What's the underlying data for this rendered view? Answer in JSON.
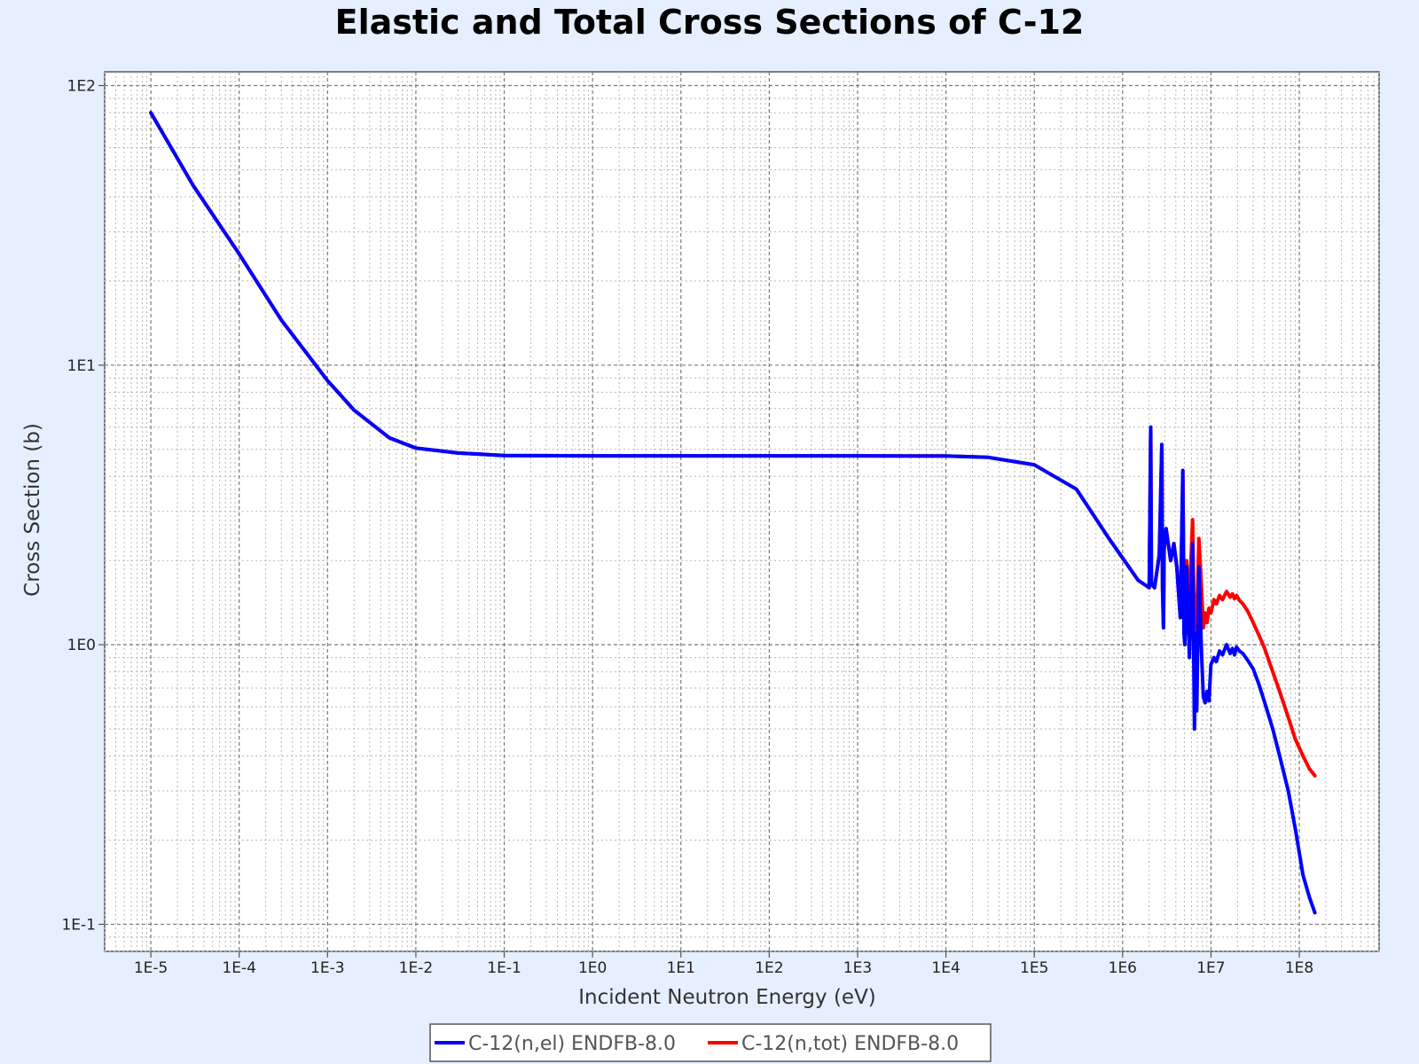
{
  "chart_data": {
    "type": "line",
    "title": "Elastic and Total Cross Sections of C-12",
    "xlabel": "Incident Neutron Energy (eV)",
    "ylabel": "Cross Section (b)",
    "x_scale": "log",
    "y_scale": "log",
    "xlim": [
      3e-06,
      800000000.0
    ],
    "ylim": [
      0.08,
      112
    ],
    "grid": true,
    "legend_position": "bottom-center",
    "x_ticks": [
      {
        "value": 1e-05,
        "label": "1E-5"
      },
      {
        "value": 0.0001,
        "label": "1E-4"
      },
      {
        "value": 0.001,
        "label": "1E-3"
      },
      {
        "value": 0.01,
        "label": "1E-2"
      },
      {
        "value": 0.1,
        "label": "1E-1"
      },
      {
        "value": 1,
        "label": "1E0"
      },
      {
        "value": 10,
        "label": "1E1"
      },
      {
        "value": 100,
        "label": "1E2"
      },
      {
        "value": 1000,
        "label": "1E3"
      },
      {
        "value": 10000,
        "label": "1E4"
      },
      {
        "value": 100000,
        "label": "1E5"
      },
      {
        "value": 1000000,
        "label": "1E6"
      },
      {
        "value": 10000000,
        "label": "1E7"
      },
      {
        "value": 100000000,
        "label": "1E8"
      }
    ],
    "y_ticks": [
      {
        "value": 0.1,
        "label": "1E-1"
      },
      {
        "value": 1,
        "label": "1E0"
      },
      {
        "value": 10,
        "label": "1E1"
      },
      {
        "value": 100,
        "label": "1E2"
      }
    ],
    "series": [
      {
        "name": "C-12(n,el) ENDFB-8.0",
        "color": "#0000ff",
        "x": [
          1e-05,
          3e-05,
          0.0001,
          0.0003,
          0.001,
          0.002,
          0.005,
          0.01,
          0.03,
          0.1,
          1,
          10,
          100,
          1000,
          10000,
          30000,
          100000,
          300000,
          700000,
          1500000,
          2000000,
          2080000,
          2120000,
          2300000,
          2600000,
          2780000,
          2830000,
          2900000,
          2950000,
          3100000,
          3500000,
          3800000,
          4100000,
          4500000,
          4800000,
          4950000,
          5050000,
          5300000,
          5700000,
          6200000,
          6500000,
          6700000,
          6900000,
          7300000,
          7800000,
          8200000,
          8600000,
          9000000,
          9500000,
          10000000,
          10800000,
          11500000,
          12500000,
          13500000,
          15000000,
          16500000,
          17500000,
          18500000,
          19500000,
          21000000,
          23000000,
          26000000,
          30000000,
          35000000,
          40000000,
          50000000,
          60000000,
          75000000,
          90000000,
          110000000,
          130000000,
          150000000
        ],
        "y": [
          80,
          44,
          25,
          14.5,
          8.8,
          6.9,
          5.5,
          5.05,
          4.85,
          4.75,
          4.74,
          4.74,
          4.74,
          4.74,
          4.73,
          4.68,
          4.4,
          3.6,
          2.4,
          1.7,
          1.6,
          6.0,
          1.65,
          1.6,
          2.1,
          5.2,
          1.6,
          1.15,
          2.2,
          2.6,
          2.0,
          2.3,
          1.9,
          1.25,
          4.2,
          1.1,
          1.0,
          1.9,
          0.9,
          2.3,
          0.5,
          1.1,
          0.58,
          1.9,
          0.95,
          0.65,
          0.62,
          0.68,
          0.63,
          0.85,
          0.9,
          0.87,
          0.95,
          0.92,
          1.0,
          0.93,
          0.97,
          0.92,
          0.98,
          0.95,
          0.93,
          0.88,
          0.82,
          0.72,
          0.63,
          0.5,
          0.4,
          0.3,
          0.22,
          0.15,
          0.125,
          0.11
        ]
      },
      {
        "name": "C-12(n,tot) ENDFB-8.0",
        "color": "#ff0000",
        "x": [
          1e-05,
          3e-05,
          0.0001,
          0.0003,
          0.001,
          0.002,
          0.005,
          0.01,
          0.03,
          0.1,
          1,
          10,
          100,
          1000,
          10000,
          30000,
          100000,
          300000,
          700000,
          1500000,
          2000000,
          2080000,
          2120000,
          2300000,
          2600000,
          2780000,
          2830000,
          2900000,
          2950000,
          3100000,
          3500000,
          3800000,
          4100000,
          4500000,
          4800000,
          4950000,
          5050000,
          5300000,
          5700000,
          6200000,
          6500000,
          6700000,
          6900000,
          7300000,
          7800000,
          8200000,
          8600000,
          9000000,
          9500000,
          10000000,
          10800000,
          11500000,
          12500000,
          13500000,
          15000000,
          16500000,
          17500000,
          18500000,
          19500000,
          21000000,
          23000000,
          26000000,
          30000000,
          35000000,
          40000000,
          50000000,
          60000000,
          75000000,
          90000000,
          110000000,
          130000000,
          150000000
        ],
        "y": [
          80,
          44,
          25,
          14.5,
          8.8,
          6.9,
          5.5,
          5.05,
          4.85,
          4.75,
          4.74,
          4.74,
          4.74,
          4.74,
          4.73,
          4.68,
          4.4,
          3.6,
          2.4,
          1.7,
          1.6,
          6.0,
          1.65,
          1.6,
          2.1,
          5.2,
          1.6,
          1.15,
          2.2,
          2.6,
          2.0,
          2.3,
          1.9,
          1.25,
          4.2,
          1.4,
          1.3,
          2.0,
          1.4,
          2.8,
          1.1,
          1.5,
          1.2,
          2.4,
          1.6,
          1.15,
          1.3,
          1.2,
          1.35,
          1.3,
          1.45,
          1.4,
          1.5,
          1.45,
          1.55,
          1.48,
          1.52,
          1.46,
          1.5,
          1.44,
          1.4,
          1.32,
          1.2,
          1.08,
          0.98,
          0.8,
          0.68,
          0.55,
          0.46,
          0.4,
          0.36,
          0.34
        ]
      }
    ]
  }
}
